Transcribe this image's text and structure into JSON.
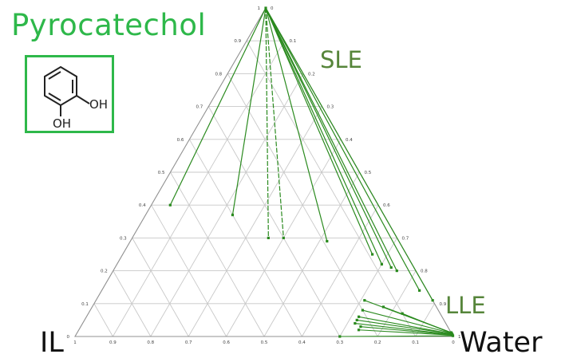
{
  "title": "Pyrocatechol",
  "labels": {
    "sle": "SLE",
    "lle": "LLE"
  },
  "corners": {
    "il": "IL",
    "water": "Water"
  },
  "molecule": {
    "name": "pyrocatechol",
    "oh_top": "OH",
    "oh_bottom": "OH",
    "frame_color": "#2eb84a"
  },
  "colors": {
    "tieline": "#2a8a1e",
    "grid": "#c8c8c8",
    "frame": "#909090",
    "title": "#2eb84a",
    "region_label": "#56853a"
  },
  "axes": {
    "bottom_ticks": [
      "1",
      "0.9",
      "0.8",
      "0.7",
      "0.6",
      "0.5",
      "0.4",
      "0.3",
      "0.2",
      "0.1",
      "0"
    ],
    "left_ticks": [
      "0",
      "0.1",
      "0.2",
      "0.3",
      "0.4",
      "0.5",
      "0.6",
      "0.7",
      "0.8",
      "0.9",
      "1"
    ],
    "right_ticks": [
      "0",
      "0.1",
      "0.2",
      "0.3",
      "0.4",
      "0.5",
      "0.6",
      "0.7",
      "0.8",
      "0.9",
      "1"
    ]
  },
  "chart_data": {
    "type": "ternary",
    "components": [
      "Pyrocatechol",
      "IL",
      "Water"
    ],
    "grid_step": 0.1,
    "grid": true,
    "sle_tielines": [
      {
        "a": [
          1.0,
          0.0,
          0.0
        ],
        "b": [
          0.4,
          0.55,
          0.05
        ],
        "style": "solid"
      },
      {
        "a": [
          1.0,
          0.0,
          0.0
        ],
        "b": [
          0.37,
          0.4,
          0.23
        ],
        "style": "solid"
      },
      {
        "a": [
          1.0,
          0.0,
          0.0
        ],
        "b": [
          0.3,
          0.34,
          0.36
        ],
        "style": "dashed"
      },
      {
        "a": [
          1.0,
          0.0,
          0.0
        ],
        "b": [
          0.3,
          0.3,
          0.4
        ],
        "style": "dashed"
      },
      {
        "a": [
          1.0,
          0.0,
          0.0
        ],
        "b": [
          0.29,
          0.19,
          0.52
        ],
        "style": "solid"
      },
      {
        "a": [
          1.0,
          0.0,
          0.0
        ],
        "b": [
          0.25,
          0.09,
          0.66
        ],
        "style": "solid"
      },
      {
        "a": [
          1.0,
          0.0,
          0.0
        ],
        "b": [
          0.22,
          0.08,
          0.7
        ],
        "style": "solid"
      },
      {
        "a": [
          1.0,
          0.0,
          0.0
        ],
        "b": [
          0.21,
          0.06,
          0.73
        ],
        "style": "solid"
      },
      {
        "a": [
          1.0,
          0.0,
          0.0
        ],
        "b": [
          0.2,
          0.05,
          0.75
        ],
        "style": "solid"
      },
      {
        "a": [
          1.0,
          0.0,
          0.0
        ],
        "b": [
          0.14,
          0.02,
          0.84
        ],
        "style": "solid"
      },
      {
        "a": [
          1.0,
          0.0,
          0.0
        ],
        "b": [
          0.11,
          0.0,
          0.89
        ],
        "style": "solid"
      }
    ],
    "lle_tielines": [
      {
        "a": [
          0.11,
          0.18,
          0.71
        ],
        "b": [
          0.012,
          0.0,
          0.988
        ]
      },
      {
        "a": [
          0.09,
          0.14,
          0.77
        ],
        "b": [
          0.012,
          0.0,
          0.988
        ]
      },
      {
        "a": [
          0.08,
          0.2,
          0.72
        ],
        "b": [
          0.01,
          0.0,
          0.99
        ]
      },
      {
        "a": [
          0.07,
          0.1,
          0.83
        ],
        "b": [
          0.01,
          0.0,
          0.99
        ]
      },
      {
        "a": [
          0.06,
          0.22,
          0.72
        ],
        "b": [
          0.008,
          0.0,
          0.992
        ]
      },
      {
        "a": [
          0.05,
          0.23,
          0.72
        ],
        "b": [
          0.008,
          0.0,
          0.992
        ]
      },
      {
        "a": [
          0.04,
          0.24,
          0.72
        ],
        "b": [
          0.006,
          0.0,
          0.994
        ]
      },
      {
        "a": [
          0.03,
          0.23,
          0.74
        ],
        "b": [
          0.005,
          0.0,
          0.995
        ]
      },
      {
        "a": [
          0.02,
          0.24,
          0.74
        ],
        "b": [
          0.004,
          0.0,
          0.996
        ]
      },
      {
        "a": [
          0.0,
          0.3,
          0.7
        ],
        "b": [
          0.002,
          0.0,
          0.998
        ]
      }
    ]
  }
}
